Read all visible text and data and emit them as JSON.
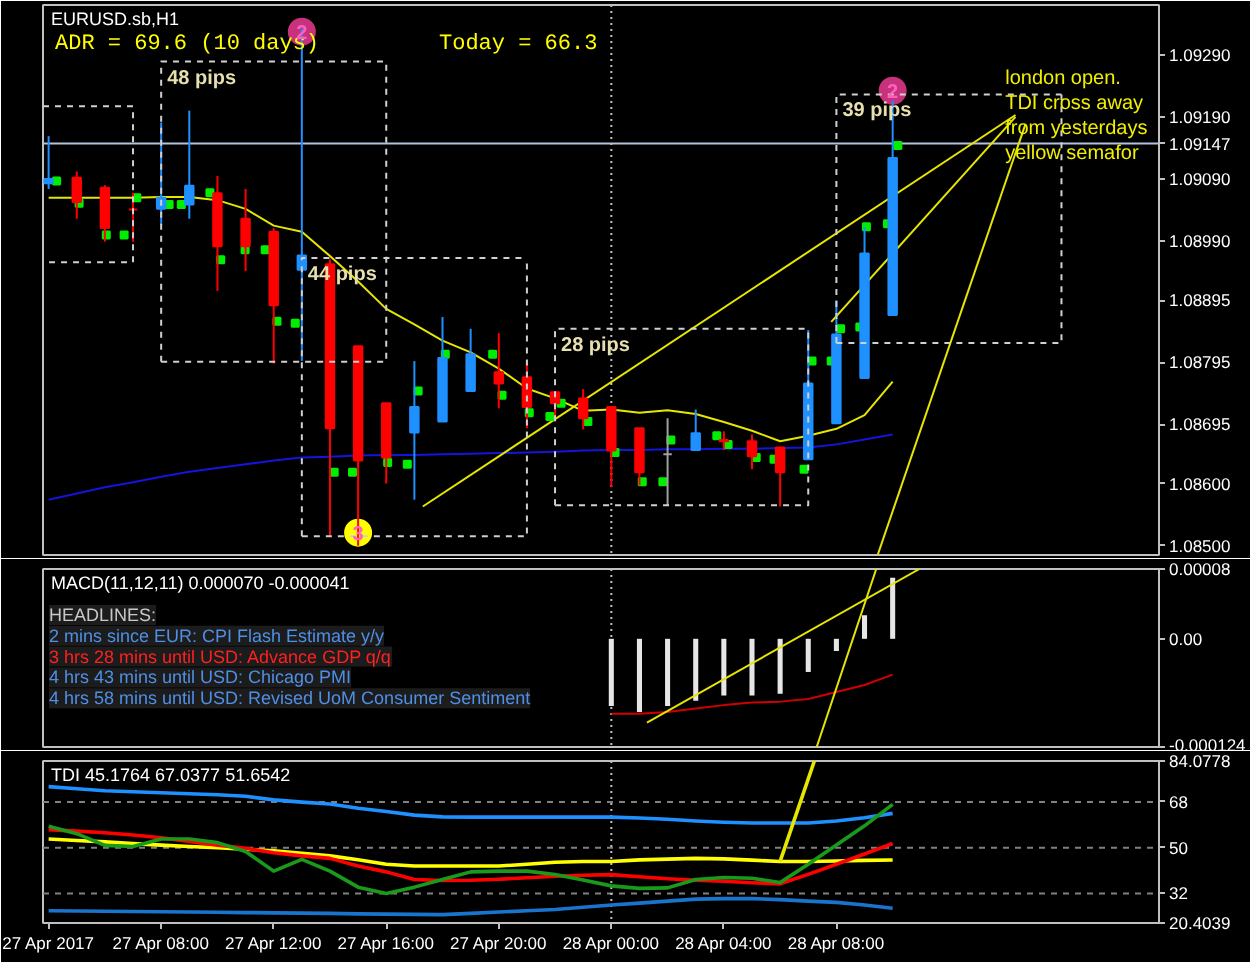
{
  "chart_data": [
    {
      "type": "candlestick",
      "title": "EURUSD.sb,H1",
      "x": [
        "2017-04-27T04:00",
        "2017-04-27T05:00",
        "2017-04-27T06:00",
        "2017-04-27T07:00",
        "2017-04-27T08:00",
        "2017-04-27T09:00",
        "2017-04-27T10:00",
        "2017-04-27T11:00",
        "2017-04-27T12:00",
        "2017-04-27T13:00",
        "2017-04-27T14:00",
        "2017-04-27T15:00",
        "2017-04-27T16:00",
        "2017-04-27T17:00",
        "2017-04-27T18:00",
        "2017-04-27T19:00",
        "2017-04-27T20:00",
        "2017-04-27T21:00",
        "2017-04-27T22:00",
        "2017-04-27T23:00",
        "2017-04-28T00:00",
        "2017-04-28T01:00",
        "2017-04-28T02:00",
        "2017-04-28T03:00",
        "2017-04-28T04:00",
        "2017-04-28T05:00",
        "2017-04-28T06:00",
        "2017-04-28T07:00",
        "2017-04-28T08:00",
        "2017-04-28T09:00",
        "2017-04-28T10:00"
      ],
      "xlim": [
        "2017-04-27T03:48",
        "2017-04-28T19:28"
      ],
      "ylim": [
        1.08485,
        1.0937
      ],
      "yticks": [
        {
          "value": 1.0929,
          "label": "1.09290"
        },
        {
          "value": 1.0919,
          "label": "1.09190"
        },
        1.09147,
        {
          "value": 1.0909,
          "label": "1.09090"
        },
        {
          "value": 1.0899,
          "label": "1.08990"
        },
        1.08895,
        1.08795,
        1.08695,
        {
          "value": 1.086,
          "label": "1.08600"
        },
        {
          "value": 1.085,
          "label": "1.08500"
        }
      ],
      "tick_labels": "y",
      "annotations": [
        "ADR = 69.6 (10 days)",
        "Today = 66.3",
        {
          "text": "48 pips",
          "x": "2017-04-27T08:00",
          "y": 1.09279
        },
        {
          "text": "44 pips",
          "x": "2017-04-27T13:00",
          "y": 1.08963
        },
        {
          "text": "28 pips",
          "x": "2017-04-27T22:00",
          "y": 1.08849
        },
        {
          "text": "39 pips",
          "x": "2017-04-28T08:00",
          "y": 1.09226
        },
        {
          "text": "2",
          "x": "2017-04-27T13:00",
          "y": 1.09327
        },
        {
          "text": "3",
          "x": "2017-04-27T15:00",
          "y": 1.08521
        },
        {
          "text": "2",
          "x": "2017-04-28T10:00",
          "y": 1.09232
        },
        {
          "text": "london open. TDI cross away from yesterdays yellow semafor",
          "x": "2017-04-28T14:00",
          "y": 1.0919
        }
      ],
      "ref_lines": [
        {
          "axis": "y",
          "value": 1.09147,
          "color": "#b0c4de"
        },
        {
          "axis": "x",
          "value": "2017-04-28T00:00",
          "color": "#c0c0c0",
          "line_style": "dotted"
        }
      ],
      "series": [
        {
          "type": "candlestick",
          "ohlc": [
            [
              1.09083,
              1.09159,
              1.09074,
              1.0909
            ],
            [
              1.09092,
              1.09102,
              1.09026,
              1.09053
            ],
            [
              1.09076,
              1.0908,
              1.08989,
              1.09011
            ],
            [
              1.09041,
              1.09068,
              1.08989,
              1.09041
            ],
            [
              1.09042,
              1.09181,
              1.09016,
              1.0906
            ],
            [
              1.09049,
              1.092,
              1.09026,
              1.09079
            ],
            [
              1.09067,
              1.09095,
              1.0891,
              1.08982
            ],
            [
              1.09026,
              1.09074,
              1.08942,
              1.08982
            ],
            [
              1.09005,
              1.09011,
              1.08793,
              1.08887
            ],
            [
              1.08944,
              1.09332,
              1.08797,
              1.08967
            ],
            [
              1.08953,
              1.08961,
              1.08515,
              1.08689
            ],
            [
              1.08821,
              1.08821,
              1.085,
              1.08637
            ],
            [
              1.08729,
              1.08729,
              1.086,
              1.08642
            ],
            [
              1.08682,
              1.08797,
              1.08574,
              1.08723
            ],
            [
              1.087,
              1.08868,
              1.087,
              1.08802
            ],
            [
              1.08749,
              1.08849,
              1.08749,
              1.08808
            ],
            [
              1.08779,
              1.08842,
              1.08721,
              1.08761
            ],
            [
              1.08771,
              1.08797,
              1.08689,
              1.08723
            ],
            [
              1.08747,
              1.08747,
              1.087,
              1.08729
            ],
            [
              1.08737,
              1.08752,
              1.08687,
              1.08705
            ],
            [
              1.08723,
              1.08723,
              1.08594,
              1.08653
            ],
            [
              1.08689,
              1.08689,
              1.08597,
              1.08618
            ],
            [
              1.08647,
              1.08705,
              1.08565,
              1.08647
            ],
            [
              1.08654,
              1.08719,
              1.08654,
              1.08681
            ],
            [
              1.0867,
              1.08684,
              1.08654,
              1.08668
            ],
            [
              1.08668,
              1.08679,
              1.08623,
              1.08644
            ],
            [
              1.08658,
              1.08658,
              1.08563,
              1.08618
            ],
            [
              1.08639,
              1.08847,
              1.08639,
              1.08761
            ],
            [
              1.08697,
              1.08895,
              1.08697,
              1.0884
            ],
            [
              1.0877,
              1.09013,
              1.0877,
              1.0897
            ],
            [
              1.08871,
              1.09216,
              1.08871,
              1.09124
            ]
          ],
          "colors": [
            "#1e90ff",
            "#ff0000",
            "#ff0000",
            "#ff0000",
            "#1e90ff",
            "#1e90ff",
            "#ff0000",
            "#ff0000",
            "#ff0000",
            "#1e90ff",
            "#ff0000",
            "#ff0000",
            "#ff0000",
            "#1e90ff",
            "#1e90ff",
            "#1e90ff",
            "#ff0000",
            "#ff0000",
            "#ff0000",
            "#ff0000",
            "#ff0000",
            "#ff0000",
            "#a0a0a0",
            "#1e90ff",
            "#ff0000",
            "#ff0000",
            "#ff0000",
            "#1e90ff",
            "#1e90ff",
            "#1e90ff",
            "#1e90ff"
          ]
        },
        {
          "type": "line",
          "color": "#e6e600",
          "values": [
            1.0906,
            1.0906,
            1.0906,
            1.0906,
            1.09061,
            1.09061,
            1.09056,
            1.09042,
            1.09015,
            1.09005,
            1.08966,
            1.08925,
            1.08881,
            1.08856,
            1.0883,
            1.08811,
            1.08785,
            1.08753,
            1.08737,
            1.08717,
            1.08719,
            1.08714,
            1.08718,
            1.08712,
            1.08699,
            1.08685,
            1.08668,
            1.08677,
            1.08688,
            1.0871,
            1.08764
          ]
        },
        {
          "type": "line",
          "color": "#1414dc",
          "values": [
            1.08574,
            1.08584,
            1.08594,
            1.08602,
            1.08611,
            1.08619,
            1.08625,
            1.08631,
            1.08637,
            1.08642,
            1.08643,
            1.08645,
            1.08646,
            1.08646,
            1.08647,
            1.08648,
            1.08649,
            1.0865,
            1.08651,
            1.08653,
            1.08654,
            1.08654,
            1.08655,
            1.08655,
            1.08656,
            1.08656,
            1.08657,
            1.08658,
            1.08663,
            1.08671,
            1.08679
          ]
        },
        {
          "type": "line",
          "color": "#d0d0d0",
          "line_style": "dashed",
          "x": [
            "2017-04-27T03:48",
            "2017-04-27T07:00",
            "2017-04-27T07:00",
            "2017-04-27T03:48"
          ],
          "values": [
            1.09207,
            1.09207,
            1.08956,
            1.08956
          ]
        },
        {
          "type": "line",
          "color": "#d0d0d0",
          "line_style": "dashed",
          "x": [
            "2017-04-27T08:00",
            "2017-04-27T08:00",
            "2017-04-27T16:00"
          ],
          "values": [
            1.08796,
            1.09279,
            1.09279
          ]
        },
        {
          "type": "line",
          "color": "#d0d0d0",
          "line_style": "dashed",
          "x": [
            "2017-04-27T08:00",
            "2017-04-27T16:00",
            "2017-04-27T16:00"
          ],
          "values": [
            1.08796,
            1.08796,
            1.09279
          ]
        },
        {
          "type": "line",
          "color": "#d0d0d0",
          "line_style": "dashed",
          "x": [
            "2017-04-27T13:00",
            "2017-04-27T13:00",
            "2017-04-27T21:00"
          ],
          "values": [
            1.08515,
            1.08963,
            1.08963
          ]
        },
        {
          "type": "line",
          "color": "#d0d0d0",
          "line_style": "dashed",
          "x": [
            "2017-04-27T13:00",
            "2017-04-27T21:00",
            "2017-04-27T21:00"
          ],
          "values": [
            1.08515,
            1.08515,
            1.08963
          ]
        },
        {
          "type": "line",
          "color": "#d0d0d0",
          "line_style": "dashed",
          "x": [
            "2017-04-27T22:00",
            "2017-04-27T22:00",
            "2017-04-28T07:00"
          ],
          "values": [
            1.08565,
            1.08849,
            1.08849
          ]
        },
        {
          "type": "line",
          "color": "#d0d0d0",
          "line_style": "dashed",
          "x": [
            "2017-04-27T22:00",
            "2017-04-28T07:00",
            "2017-04-28T07:00"
          ],
          "values": [
            1.08565,
            1.08565,
            1.08849
          ]
        },
        {
          "type": "line",
          "color": "#d0d0d0",
          "line_style": "dashed",
          "x": [
            "2017-04-28T08:00",
            "2017-04-28T08:00",
            "2017-04-28T16:00"
          ],
          "values": [
            1.08826,
            1.09226,
            1.09226
          ]
        },
        {
          "type": "line",
          "color": "#d0d0d0",
          "line_style": "dashed",
          "x": [
            "2017-04-28T08:00",
            "2017-04-28T16:00",
            "2017-04-28T16:00"
          ],
          "values": [
            1.08826,
            1.08826,
            1.09226
          ]
        },
        {
          "type": "line",
          "color": "#e6e600",
          "x": [
            "2017-04-27T17:18",
            "2017-04-28T14:22"
          ],
          "values": [
            1.08563,
            1.09193
          ]
        },
        {
          "type": "line",
          "color": "#e6e600",
          "x": [
            "2017-04-28T07:49",
            "2017-04-28T14:22"
          ],
          "values": [
            1.0886,
            1.0919
          ]
        },
        {
          "type": "line",
          "color": "#e6e600",
          "x": [
            "2017-04-28T09:28",
            "2017-04-28T14:43"
          ],
          "values": [
            1.08485,
            1.09178
          ]
        },
        {
          "type": "scatter",
          "marker": "square",
          "color": "#00ee00",
          "x": [
            "2017-04-27T04:17",
            "2017-04-27T05:05",
            "2017-04-27T06:03",
            "2017-04-27T06:41",
            "2017-04-27T07:08",
            "2017-04-27T08:17",
            "2017-04-27T08:43",
            "2017-04-27T09:44",
            "2017-04-27T10:07",
            "2017-04-27T10:59",
            "2017-04-27T11:42",
            "2017-04-27T12:07",
            "2017-04-27T12:46",
            "2017-04-27T14:09",
            "2017-04-27T14:48",
            "2017-04-27T16:03",
            "2017-04-27T16:45",
            "2017-04-27T17:08",
            "2017-04-27T18:06",
            "2017-04-27T19:47",
            "2017-04-27T20:07",
            "2017-04-27T21:05",
            "2017-04-27T21:49",
            "2017-04-27T22:13",
            "2017-04-27T23:10",
            "2017-04-28T00:08",
            "2017-04-28T01:06",
            "2017-04-28T01:50",
            "2017-04-28T02:07",
            "2017-04-28T03:45",
            "2017-04-28T04:09",
            "2017-04-28T05:09",
            "2017-04-28T05:47",
            "2017-04-28T06:51",
            "2017-04-28T07:08",
            "2017-04-28T07:49",
            "2017-04-28T08:09",
            "2017-04-28T08:50",
            "2017-04-28T09:04",
            "2017-04-28T09:49",
            "2017-04-28T10:11"
          ],
          "values": [
            1.09087,
            1.09051,
            1.09,
            1.09,
            1.0906,
            1.09049,
            1.09049,
            1.09068,
            1.0896,
            1.08976,
            1.08976,
            1.08861,
            1.08858,
            1.08618,
            1.08618,
            1.08634,
            1.08631,
            1.08749,
            1.08808,
            1.08808,
            1.08742,
            1.08714,
            1.08708,
            1.08729,
            1.087,
            1.0865,
            1.08603,
            1.08603,
            1.0867,
            1.08677,
            1.08663,
            1.08642,
            1.08639,
            1.08623,
            1.08797,
            1.08797,
            1.08849,
            1.08852,
            1.09013,
            1.09018,
            1.09144
          ]
        },
        {
          "type": "scatter",
          "marker": "circle",
          "x": [
            "2017-04-27T13:00",
            "2017-04-27T15:00",
            "2017-04-28T10:00"
          ],
          "values": [
            1.09327,
            1.08521,
            1.09232
          ],
          "colors": [
            "#c8327d",
            "#ffff00",
            "#c8327d"
          ]
        }
      ]
    },
    {
      "type": "bar",
      "title": "MACD(11,12,11) 0.000070 -0.000041",
      "x": [
        "2017-04-28T00:00",
        "2017-04-28T01:00",
        "2017-04-28T02:00",
        "2017-04-28T03:00",
        "2017-04-28T04:00",
        "2017-04-28T05:00",
        "2017-04-28T06:00",
        "2017-04-28T07:00",
        "2017-04-28T08:00",
        "2017-04-28T09:00",
        "2017-04-28T10:00"
      ],
      "xlim": [
        "2017-04-27T03:48",
        "2017-04-28T19:28"
      ],
      "ylim": [
        -0.000124,
        8e-05
      ],
      "yticks": [
        {
          "value": 8e-05,
          "label": "0.00008"
        },
        {
          "value": 0,
          "label": "0.00"
        },
        {
          "value": -0.000124,
          "label": "-0.000124"
        }
      ],
      "tick_labels": "y",
      "annotations": [
        "HEADLINES:",
        "2 mins since EUR: CPI Flash Estimate y/y",
        "3 hrs 28 mins until USD: Advance GDP q/q",
        "4 hrs 43 mins until USD: Chicago PMI",
        "4 hrs 58 mins until USD: Revised UoM Consumer Sentiment"
      ],
      "ref_lines": [
        {
          "axis": "x",
          "value": "2017-04-28T00:00",
          "color": "#c0c0c0",
          "line_style": "dotted"
        }
      ],
      "series": [
        {
          "type": "bar",
          "color": "#e6e6e6",
          "values": [
            -7.7e-05,
            -8.4e-05,
            -7.7e-05,
            -7.1e-05,
            -6.5e-05,
            -6.5e-05,
            -6.3e-05,
            -3.8e-05,
            -1.4e-05,
            2.7e-05,
            7e-05
          ]
        },
        {
          "type": "line",
          "color": "#d00000",
          "values": [
            -8.6e-05,
            -8.6e-05,
            -8.4e-05,
            -8e-05,
            -7.6e-05,
            -7.3e-05,
            -7.2e-05,
            -6.9e-05,
            -6.1e-05,
            -5.3e-05,
            -4.1e-05
          ]
        },
        {
          "type": "line",
          "color": "#e6e600",
          "x": [
            "2017-04-28T01:16",
            "2017-04-28T10:57"
          ],
          "values": [
            -9.6e-05,
            8e-05
          ]
        },
        {
          "type": "line",
          "color": "#e6e600",
          "x": [
            "2017-04-28T07:18",
            "2017-04-28T09:25"
          ],
          "values": [
            -0.000124,
            8e-05
          ]
        }
      ]
    },
    {
      "type": "line",
      "title": "TDI 45.1764 67.0377 51.6542",
      "x": [
        "2017-04-27T04:00",
        "2017-04-27T05:00",
        "2017-04-27T06:00",
        "2017-04-27T07:00",
        "2017-04-27T08:00",
        "2017-04-27T09:00",
        "2017-04-27T10:00",
        "2017-04-27T11:00",
        "2017-04-27T12:00",
        "2017-04-27T13:00",
        "2017-04-27T14:00",
        "2017-04-27T15:00",
        "2017-04-27T16:00",
        "2017-04-27T17:00",
        "2017-04-27T18:00",
        "2017-04-27T19:00",
        "2017-04-27T20:00",
        "2017-04-27T21:00",
        "2017-04-27T22:00",
        "2017-04-27T23:00",
        "2017-04-28T00:00",
        "2017-04-28T01:00",
        "2017-04-28T02:00",
        "2017-04-28T03:00",
        "2017-04-28T04:00",
        "2017-04-28T05:00",
        "2017-04-28T06:00",
        "2017-04-28T07:00",
        "2017-04-28T08:00",
        "2017-04-28T09:00",
        "2017-04-28T10:00"
      ],
      "xlim": [
        "2017-04-27T03:48",
        "2017-04-28T19:28"
      ],
      "xticks": [
        {
          "value": "2017-04-27T04:00",
          "label": "27 Apr 2017"
        },
        {
          "value": "2017-04-27T08:00",
          "label": "27 Apr 08:00"
        },
        {
          "value": "2017-04-27T12:00",
          "label": "27 Apr 12:00"
        },
        {
          "value": "2017-04-27T16:00",
          "label": "27 Apr 16:00"
        },
        {
          "value": "2017-04-27T20:00",
          "label": "27 Apr 20:00"
        },
        {
          "value": "2017-04-28T00:00",
          "label": "28 Apr 00:00"
        },
        {
          "value": "2017-04-28T04:00",
          "label": "28 Apr 04:00"
        },
        {
          "value": "2017-04-28T08:00",
          "label": "28 Apr 08:00"
        }
      ],
      "ylim": [
        20.4039,
        84.0778
      ],
      "yticks": [
        84.0778,
        68,
        50,
        32,
        20.4039
      ],
      "ref_lines": [
        {
          "axis": "y",
          "value": 68,
          "color": "#808080",
          "line_style": "dashed"
        },
        {
          "axis": "y",
          "value": 50,
          "color": "#808080",
          "line_style": "dashed"
        },
        {
          "axis": "y",
          "value": 32,
          "color": "#808080",
          "line_style": "dashed"
        },
        {
          "axis": "x",
          "value": "2017-04-28T00:00",
          "color": "#c0c0c0",
          "line_style": "dotted"
        }
      ],
      "series": [
        {
          "type": "line",
          "color": "#1e90ff",
          "values": [
            74.0,
            73.2,
            72.4,
            72.0,
            71.6,
            71.2,
            70.8,
            70.2,
            68.8,
            67.9,
            67.2,
            65.5,
            64.2,
            62.8,
            62.1,
            62.0,
            62.0,
            62.0,
            62.0,
            62.0,
            62.0,
            61.7,
            61.2,
            60.5,
            60.0,
            59.7,
            59.7,
            59.7,
            60.5,
            61.8,
            63.5
          ]
        },
        {
          "type": "line",
          "color": "#1874cd",
          "values": [
            25.2,
            25.1,
            25.0,
            24.9,
            24.8,
            24.7,
            24.6,
            24.5,
            24.4,
            24.3,
            24.2,
            24.0,
            23.9,
            23.8,
            23.7,
            24.2,
            24.7,
            25.2,
            25.7,
            26.6,
            27.5,
            28.2,
            29.0,
            29.8,
            30.0,
            30.0,
            29.6,
            29.0,
            28.5,
            27.5,
            26.2
          ]
        },
        {
          "type": "line",
          "color": "#ffff00",
          "values": [
            53.4,
            52.8,
            52.3,
            51.6,
            51.0,
            50.5,
            50.0,
            49.4,
            48.8,
            47.8,
            46.8,
            45.3,
            43.5,
            42.8,
            42.8,
            42.8,
            42.8,
            43.5,
            44.3,
            44.6,
            44.6,
            45.2,
            45.5,
            45.8,
            45.6,
            45.1,
            44.6,
            44.6,
            44.8,
            45.0,
            45.1764
          ]
        },
        {
          "type": "line",
          "color": "#ff0000",
          "values": [
            57.1,
            56.5,
            55.9,
            55.0,
            53.9,
            52.5,
            51.0,
            49.8,
            48.0,
            46.8,
            45.8,
            42.8,
            40.5,
            37.5,
            37.1,
            37.2,
            37.6,
            38.2,
            38.8,
            39.2,
            39.4,
            38.6,
            37.8,
            37.2,
            36.8,
            36.2,
            35.8,
            39.5,
            43.5,
            47.5,
            51.6542
          ]
        },
        {
          "type": "line",
          "color": "#1a9a1a",
          "values": [
            58.4,
            55.5,
            50.9,
            50.5,
            53.4,
            53.4,
            52.0,
            48.5,
            40.8,
            45.4,
            40.8,
            34.5,
            32.0,
            34.5,
            37.5,
            40.5,
            40.8,
            40.8,
            39.5,
            37.3,
            35.0,
            34.0,
            34.2,
            37.5,
            38.3,
            38.0,
            36.3,
            43.5,
            51.1,
            58.6,
            67.0377
          ]
        },
        {
          "type": "line",
          "color": "#e6e600",
          "x": [
            "2017-04-28T06:00",
            "2017-04-28T07:13"
          ],
          "values": [
            44.6,
            84.0778
          ]
        }
      ]
    }
  ]
}
